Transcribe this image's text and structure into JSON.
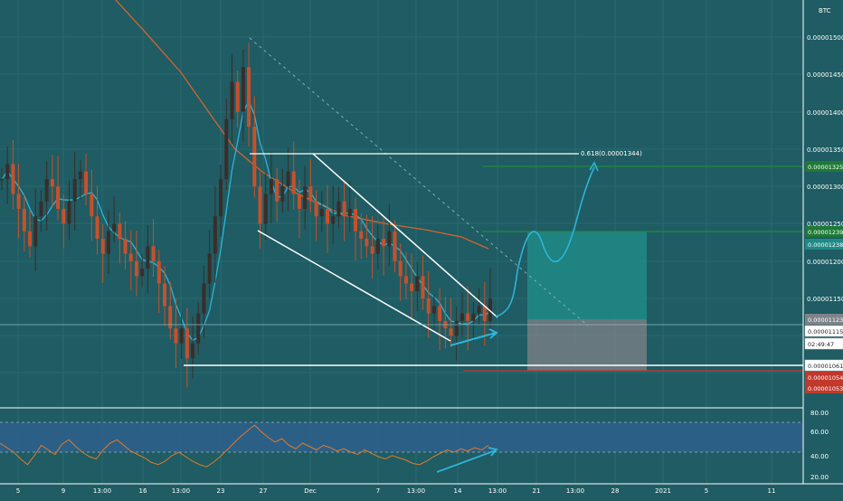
{
  "symbol_label": "BTC",
  "colors": {
    "background": "#1f5c63",
    "grid": "#2b6a70",
    "candle_up": "#3a2d2a",
    "candle_down": "#c8502a",
    "ma_blue": "#2cb5d8",
    "ma_orange": "#d2642e",
    "pattern_lines": "#ffffff",
    "projection": "#2cb5d8",
    "target_box": "#1f8a86",
    "stop_box": "#7a7f86",
    "level_green": "#1e8a3e",
    "level_red": "#c0392b",
    "rsi_band": "#2d5f88",
    "rsi_line": "#e07a2e",
    "rsi_arrow": "#2cb5d8"
  },
  "axis": {
    "price_ticks": [
      "0.00001500",
      "0.00001450",
      "0.00001400",
      "0.00001350",
      "0.00001300",
      "0.00001250",
      "0.00001200",
      "0.00001150"
    ],
    "rsi_ticks": [
      "80.00",
      "60.00",
      "40.00",
      "20.00"
    ],
    "x_ticks": [
      "5",
      "9",
      "13:00",
      "16",
      "13:00",
      "23",
      "27",
      "Dec",
      "7",
      "13:00",
      "14",
      "13:00",
      "21",
      "13:00",
      "28",
      "2021",
      "5",
      "11"
    ]
  },
  "price_tags": [
    {
      "text": "0.00001325",
      "style": "green"
    },
    {
      "text": "0.00001239",
      "style": "green"
    },
    {
      "text": "0.00001238",
      "style": "teal"
    },
    {
      "text": "0.00001123",
      "style": "gray"
    },
    {
      "text": "0.00001115",
      "style": "white"
    },
    {
      "text": "02:49:47",
      "style": "white"
    },
    {
      "text": "0.00001061",
      "style": "white"
    },
    {
      "text": "0.00001054",
      "style": "red"
    },
    {
      "text": "0.00001053",
      "style": "red"
    }
  ],
  "annotations": {
    "fib_label": "0.618(0.00001344)"
  },
  "chart_data": {
    "type": "candlestick",
    "symbol": "BTC",
    "x_axis": "date",
    "y_scale": "linear",
    "ylim": [
      1.025e-05,
      1.545e-05
    ],
    "series": [
      {
        "name": "",
        "kind": "moving_average",
        "color": "#2cb5d8"
      },
      {
        "name": "",
        "kind": "moving_average",
        "color": "#d2642e"
      }
    ],
    "levels": {
      "fib_0618": 1.344e-05,
      "target_1": 1.325e-05,
      "target_2": 1.239e-05,
      "entry": 1.123e-05,
      "last_price": 1.115e-05,
      "support": 1.061e-05,
      "stop_1": 1.054e-05,
      "stop_2": 1.053e-05
    },
    "candles_close_estimate": [
      1.31e-05,
      1.33e-05,
      1.29e-05,
      1.27e-05,
      1.24e-05,
      1.22e-05,
      1.26e-05,
      1.28e-05,
      1.31e-05,
      1.3e-05,
      1.27e-05,
      1.25e-05,
      1.28e-05,
      1.31e-05,
      1.32e-05,
      1.29e-05,
      1.26e-05,
      1.23e-05,
      1.21e-05,
      1.24e-05,
      1.25e-05,
      1.23e-05,
      1.21e-05,
      1.2e-05,
      1.18e-05,
      1.19e-05,
      1.22e-05,
      1.2e-05,
      1.17e-05,
      1.14e-05,
      1.11e-05,
      1.09e-05,
      1.11e-05,
      1.07e-05,
      1.09e-05,
      1.13e-05,
      1.17e-05,
      1.21e-05,
      1.26e-05,
      1.31e-05,
      1.39e-05,
      1.44e-05,
      1.4e-05,
      1.46e-05,
      1.38e-05,
      1.3e-05,
      1.25e-05,
      1.29e-05,
      1.31e-05,
      1.28e-05,
      1.3e-05,
      1.32e-05,
      1.29e-05,
      1.27e-05,
      1.3e-05,
      1.28e-05,
      1.26e-05,
      1.27e-05,
      1.25e-05,
      1.26e-05,
      1.28e-05,
      1.26e-05,
      1.27e-05,
      1.24e-05,
      1.23e-05,
      1.22e-05,
      1.21e-05,
      1.23e-05,
      1.22e-05,
      1.24e-05,
      1.2e-05,
      1.18e-05,
      1.17e-05,
      1.16e-05,
      1.18e-05,
      1.15e-05,
      1.13e-05,
      1.14e-05,
      1.12e-05,
      1.11e-05,
      1.1e-05,
      1.12e-05,
      1.13e-05,
      1.12e-05,
      1.13e-05,
      1.14e-05,
      1.12e-05,
      1.15e-05
    ],
    "rsi": {
      "range": [
        20,
        80
      ],
      "guides": [
        70,
        30
      ],
      "values_estimate": [
        52,
        48,
        44,
        38,
        33,
        41,
        50,
        46,
        42,
        51,
        55,
        49,
        44,
        40,
        38,
        46,
        52,
        55,
        50,
        45,
        42,
        39,
        35,
        33,
        36,
        41,
        44,
        40,
        36,
        33,
        31,
        35,
        40,
        46,
        52,
        58,
        63,
        68,
        62,
        57,
        53,
        56,
        50,
        47,
        52,
        49,
        46,
        50,
        48,
        45,
        47,
        44,
        42,
        46,
        43,
        40,
        38,
        41,
        39,
        37,
        34,
        33,
        36,
        40,
        43,
        46,
        44,
        47,
        45,
        48,
        46,
        50
      ]
    }
  }
}
